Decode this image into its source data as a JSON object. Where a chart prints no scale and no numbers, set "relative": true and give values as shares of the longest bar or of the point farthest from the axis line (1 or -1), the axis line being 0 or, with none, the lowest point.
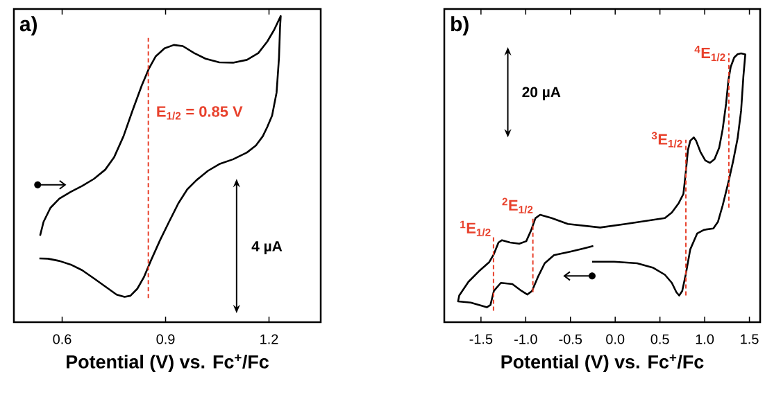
{
  "chart_data": [
    {
      "type": "line",
      "title": "a)",
      "xlabel": "Potential (V) vs. Fc$^{+}$/Fc",
      "relative": true,
      "xlim": [
        0.46,
        1.35
      ],
      "xticks": [
        0.6,
        0.9,
        1.2
      ],
      "series": [
        {
          "color": "#000000",
          "x": [
            0.536,
            0.546,
            0.566,
            0.592,
            0.625,
            0.658,
            0.692,
            0.725,
            0.751,
            0.778,
            0.804,
            0.831,
            0.851,
            0.871,
            0.897,
            0.924,
            0.95,
            0.983,
            1.016,
            1.056,
            1.096,
            1.136,
            1.169,
            1.195,
            1.215,
            1.234,
            1.232,
            1.229,
            1.222,
            1.209,
            1.195,
            1.182,
            1.162,
            1.136,
            1.096,
            1.056,
            1.023,
            0.99,
            0.963,
            0.937,
            0.91,
            0.884,
            0.857,
            0.837,
            0.818,
            0.798,
            0.781,
            0.758,
            0.725,
            0.692,
            0.658,
            0.625,
            0.592,
            0.559,
            0.534
          ],
          "values": [
            0.218,
            0.267,
            0.317,
            0.35,
            0.374,
            0.395,
            0.42,
            0.453,
            0.498,
            0.572,
            0.663,
            0.753,
            0.811,
            0.856,
            0.885,
            0.897,
            0.893,
            0.868,
            0.848,
            0.835,
            0.834,
            0.844,
            0.868,
            0.909,
            0.951,
            1.0,
            0.959,
            0.852,
            0.728,
            0.646,
            0.605,
            0.572,
            0.539,
            0.514,
            0.49,
            0.473,
            0.449,
            0.416,
            0.383,
            0.333,
            0.267,
            0.202,
            0.128,
            0.07,
            0.029,
            0.004,
            0.0,
            0.008,
            0.037,
            0.066,
            0.095,
            0.115,
            0.128,
            0.136,
            0.137
          ]
        }
      ],
      "ref_lines": [
        {
          "axis": "x",
          "value": 0.85,
          "label": "E$_{1/2}$ = 0.85 V",
          "color": "#e8412c",
          "line_style": "dashed"
        }
      ],
      "annotations": [
        "4 µA"
      ]
    },
    {
      "type": "line",
      "title": "b)",
      "xlabel": "Potential (V) vs. Fc$^{+}$/Fc",
      "relative": true,
      "xlim": [
        -1.91,
        1.62
      ],
      "xticks": [
        -1.5,
        {
          "value": -1.0,
          "label": "-1.0"
        },
        -0.5,
        {
          "value": 0.0,
          "label": "0.0"
        },
        0.5,
        {
          "value": 1.0,
          "label": "1.0"
        },
        1.5
      ],
      "series": [
        {
          "color": "#000000",
          "x": [
            -0.258,
            -0.013,
            0.245,
            0.426,
            0.555,
            0.633,
            0.684,
            0.715,
            0.749,
            0.788,
            0.839,
            0.917,
            0.994,
            1.097,
            1.149,
            1.201,
            1.265,
            1.317,
            1.368,
            1.407,
            1.433,
            1.454,
            1.407,
            1.368,
            1.33,
            1.291,
            1.265,
            1.239,
            1.201,
            1.162,
            1.11,
            1.059,
            1.007,
            0.955,
            0.904,
            0.878,
            0.839,
            0.813,
            0.788,
            0.762,
            0.71,
            0.633,
            0.555,
            0.116,
            -0.168,
            -0.529,
            -0.71,
            -0.839,
            -0.891,
            -0.942,
            -0.994,
            -1.072,
            -1.175,
            -1.265,
            -1.304,
            -1.356,
            -1.407,
            -1.51,
            -1.64,
            -1.743,
            -1.756,
            -1.614,
            -1.433,
            -1.394,
            -1.356,
            -1.278,
            -1.149,
            -1.046,
            -0.981,
            -0.93,
            -0.865,
            -0.788,
            -0.684,
            -0.503,
            -0.349,
            -0.245
          ],
          "values": [
            0.179,
            0.179,
            0.173,
            0.155,
            0.128,
            0.096,
            0.059,
            0.046,
            0.064,
            0.128,
            0.228,
            0.291,
            0.305,
            0.31,
            0.337,
            0.401,
            0.492,
            0.574,
            0.665,
            0.774,
            0.911,
            0.996,
            1.0,
            0.997,
            0.984,
            0.947,
            0.893,
            0.801,
            0.701,
            0.628,
            0.583,
            0.569,
            0.578,
            0.61,
            0.656,
            0.669,
            0.656,
            0.619,
            0.528,
            0.446,
            0.41,
            0.373,
            0.351,
            0.328,
            0.314,
            0.328,
            0.351,
            0.364,
            0.351,
            0.301,
            0.26,
            0.25,
            0.255,
            0.264,
            0.255,
            0.209,
            0.178,
            0.146,
            0.1,
            0.046,
            0.023,
            0.018,
            0.0,
            0.009,
            0.064,
            0.096,
            0.091,
            0.064,
            0.05,
            0.064,
            0.118,
            0.173,
            0.205,
            0.219,
            0.232,
            0.241
          ]
        }
      ],
      "ref_lines": [
        {
          "axis": "x",
          "value": -1.36,
          "label": "$^{1}$E$_{1/2}$",
          "color": "#e8412c",
          "line_style": "dashed"
        },
        {
          "axis": "x",
          "value": -0.92,
          "label": "$^{2}$E$_{1/2}$",
          "color": "#e8412c",
          "line_style": "dashed"
        },
        {
          "axis": "x",
          "value": 0.79,
          "label": "$^{3}$E$_{1/2}$",
          "color": "#e8412c",
          "line_style": "dashed"
        },
        {
          "axis": "x",
          "value": 1.27,
          "label": "$^{4}$E$_{1/2}$",
          "color": "#e8412c",
          "line_style": "dashed"
        }
      ],
      "annotations": [
        "20 µA"
      ]
    }
  ]
}
